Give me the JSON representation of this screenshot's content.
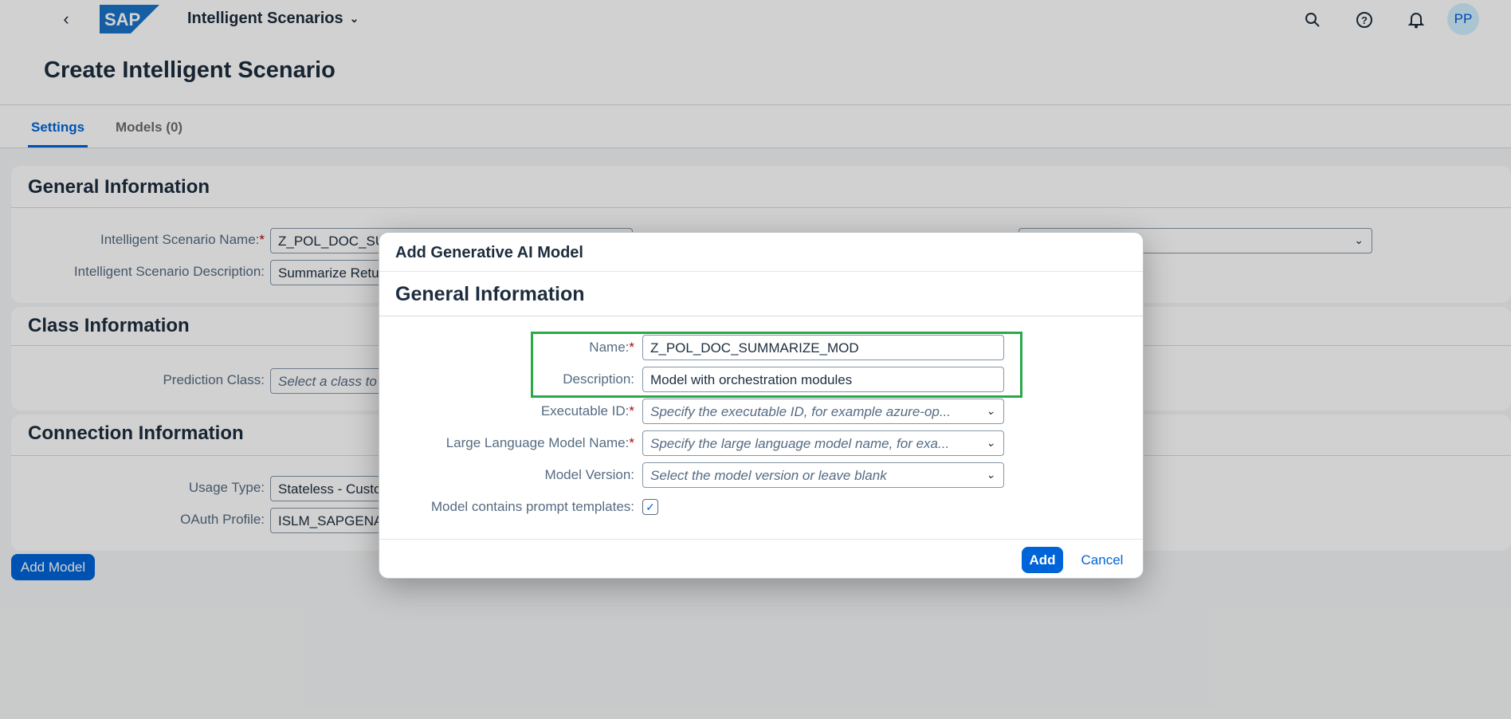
{
  "shell": {
    "app_title": "Intelligent Scenarios",
    "logo_text": "SAP",
    "avatar_initials": "PP"
  },
  "page": {
    "title": "Create Intelligent Scenario",
    "tabs": [
      {
        "label": "Settings",
        "active": true
      },
      {
        "label": "Models (0)",
        "active": false
      }
    ]
  },
  "general": {
    "title": "General Information",
    "name_label": "Intelligent Scenario Name:",
    "name_value": "Z_POL_DOC_SUMMARIZE",
    "desc_label": "Intelligent Scenario Description:",
    "desc_value": "Summarize Returns"
  },
  "class_info": {
    "title": "Class Information",
    "prediction_label": "Prediction Class:",
    "prediction_placeholder": "Select a class to"
  },
  "connection": {
    "title": "Connection Information",
    "usage_label": "Usage Type:",
    "usage_value": "Stateless - Custom",
    "oauth_label": "OAuth Profile:",
    "oauth_value": "ISLM_SAPGENAI"
  },
  "add_model_button": "Add Model",
  "dialog": {
    "title": "Add Generative AI Model",
    "section_title": "General Information",
    "name_label": "Name:",
    "name_value": "Z_POL_DOC_SUMMARIZE_MOD",
    "description_label": "Description:",
    "description_value": "Model with orchestration modules",
    "executable_label": "Executable ID:",
    "executable_placeholder": "Specify the executable ID, for example azure-op...",
    "llm_label": "Large Language Model Name:",
    "llm_placeholder": "Specify the large language model name, for exa...",
    "version_label": "Model Version:",
    "version_placeholder": "Select the model version or leave blank",
    "prompt_label": "Model contains prompt templates:",
    "prompt_checked": true,
    "add_button": "Add",
    "cancel_button": "Cancel"
  },
  "colors": {
    "accent": "#0064d9",
    "required": "#aa0808",
    "highlight": "#2aa84a"
  }
}
